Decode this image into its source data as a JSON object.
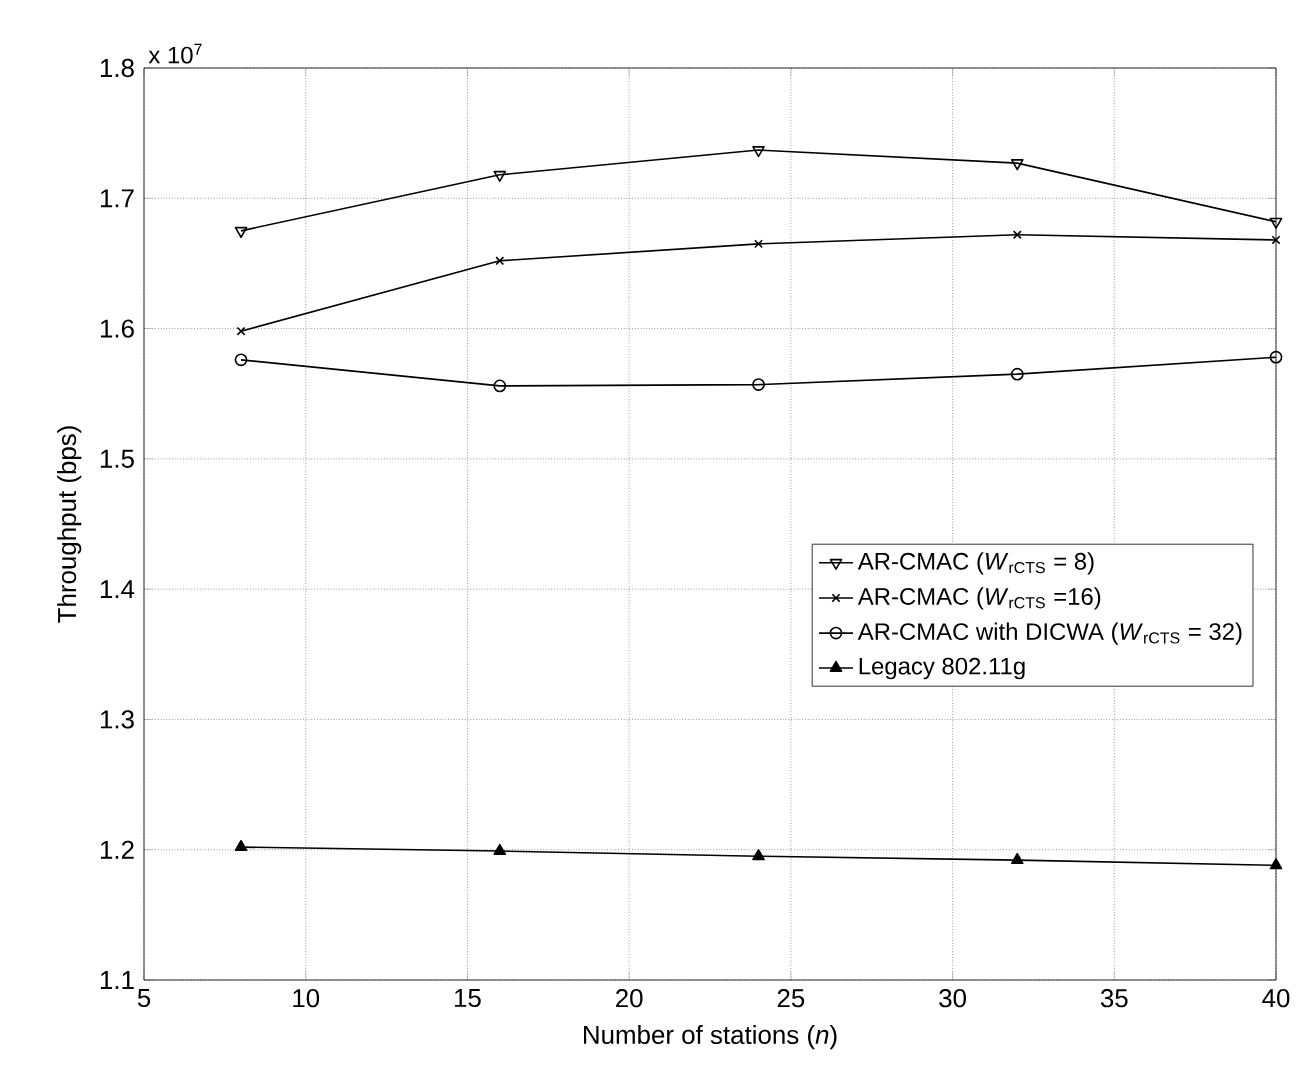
{
  "chart_data": {
    "type": "line",
    "xlabel": "Number of stations (*n*)",
    "ylabel": "Throughput (bps)",
    "annotations": [
      "x 10$^{7}$"
    ],
    "x": [
      8,
      16,
      24,
      32,
      40
    ],
    "series": [
      {
        "name": "AR-CMAC (*W*$_{rCTS}$ = 8)",
        "color": "#000000",
        "marker": "triangle_down",
        "values": [
          1.675,
          1.718,
          1.737,
          1.727,
          1.682
        ]
      },
      {
        "name": "AR-CMAC (*W*$_{rCTS}$ =16)",
        "color": "#000000",
        "marker": "cross",
        "values": [
          1.598,
          1.652,
          1.665,
          1.672,
          1.668
        ]
      },
      {
        "name": "AR-CMAC with DICWA (*W*$_{rCTS}$ = 32)",
        "color": "#000000",
        "marker": "circle",
        "values": [
          1.576,
          1.556,
          1.557,
          1.565,
          1.578
        ]
      },
      {
        "name": "Legacy 802.11g",
        "color": "#000000",
        "marker": "triangle",
        "values": [
          1.202,
          1.199,
          1.195,
          1.192,
          1.188
        ]
      }
    ],
    "xlim": [
      5,
      40
    ],
    "xticks": [
      5,
      10,
      15,
      20,
      25,
      30,
      35,
      40
    ],
    "ylim": [
      1.1,
      1.8
    ],
    "yticks": [
      1.1,
      1.2,
      1.3,
      1.4,
      1.5,
      1.6,
      1.7,
      1.8
    ],
    "grid": true,
    "legend": "right",
    "line_style": "solid"
  }
}
